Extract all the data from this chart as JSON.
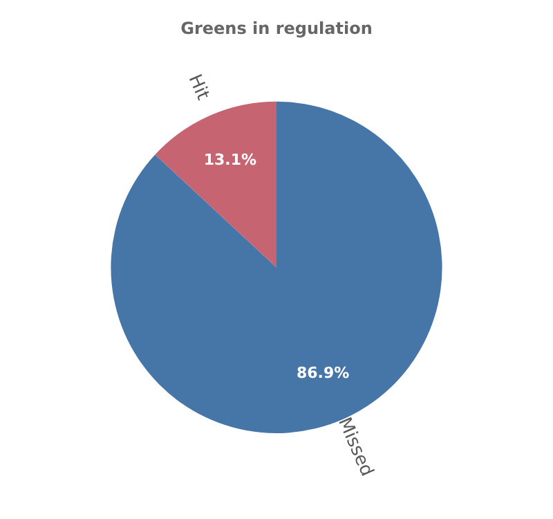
{
  "chart_data": {
    "type": "pie",
    "title": "Greens in regulation",
    "categories": [
      "Missed",
      "Hit"
    ],
    "values": [
      86.9,
      13.1
    ],
    "colors": [
      "#4676a8",
      "#c66472"
    ],
    "value_labels": [
      "86.9%",
      "13.1%"
    ],
    "legend": false
  }
}
